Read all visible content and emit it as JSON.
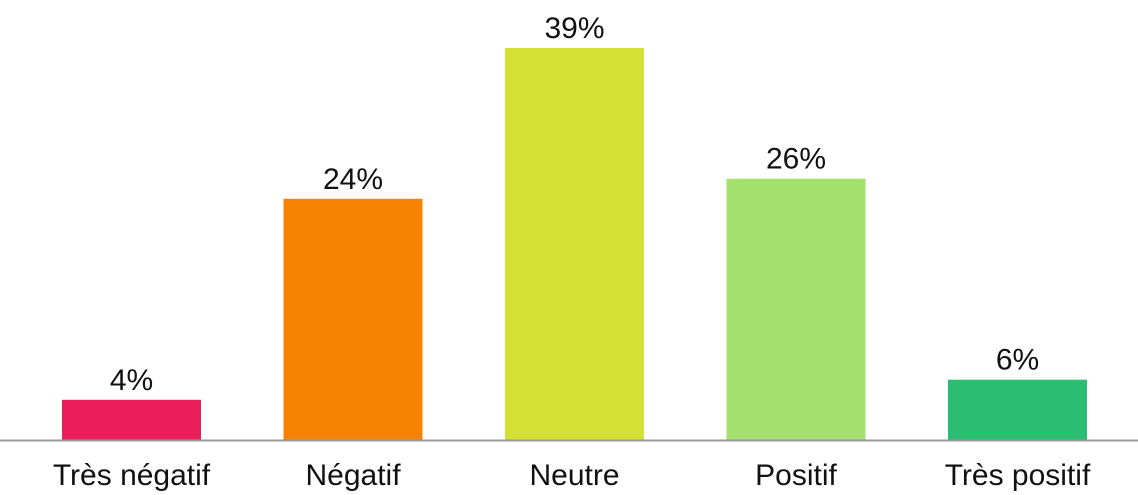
{
  "chart_data": {
    "type": "bar",
    "title": "",
    "xlabel": "",
    "ylabel": "",
    "categories": [
      "Très négatif",
      "Négatif",
      "Neutre",
      "Positif",
      "Très positif"
    ],
    "values": [
      4,
      24,
      39,
      26,
      6
    ],
    "data_labels": [
      "4%",
      "24%",
      "39%",
      "26%",
      "6%"
    ],
    "colors": [
      "#e91e5a",
      "#f58300",
      "#d4e034",
      "#a3e06e",
      "#2bbd72"
    ],
    "axis_color": "#999999",
    "ylim": [
      0,
      39
    ],
    "grid": false,
    "legend": "none"
  }
}
